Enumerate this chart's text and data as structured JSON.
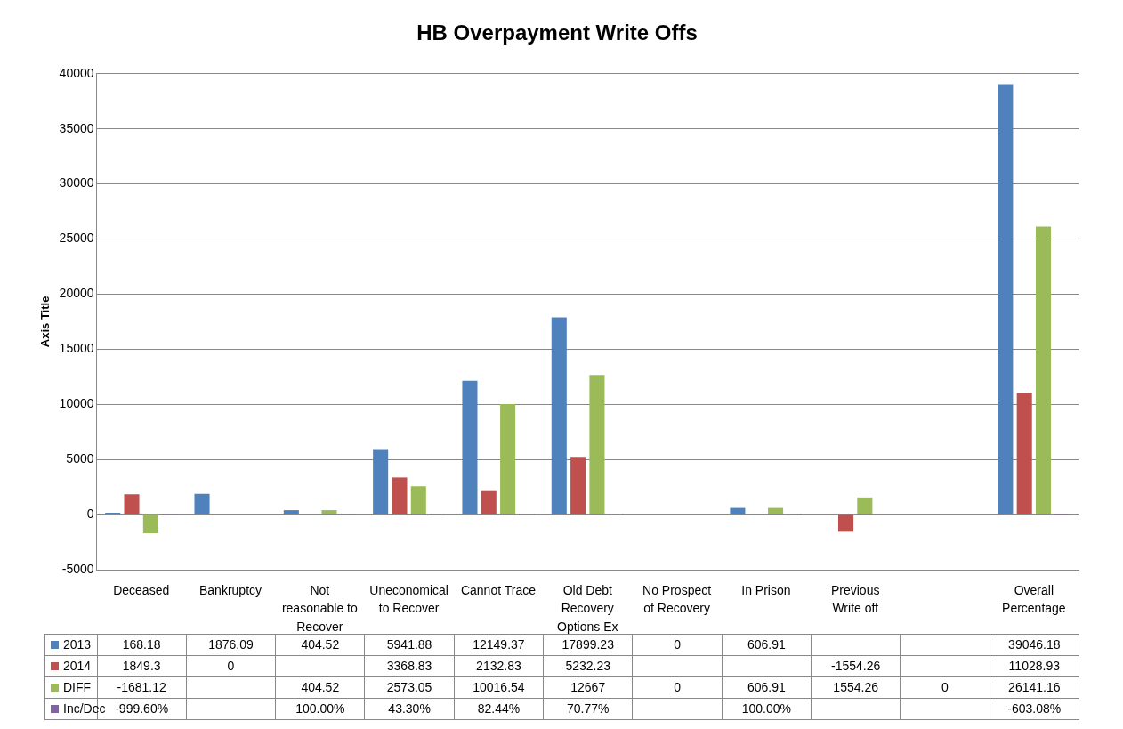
{
  "chart_data": {
    "type": "bar",
    "title": "HB Overpayment Write Offs",
    "ylabel": "Axis Title",
    "categories": [
      "Deceased",
      "Bankruptcy",
      "Not reasonable to Recover",
      "Uneconomical to Recover",
      "Cannot Trace",
      "Old Debt Recovery Options Ex",
      "No Prospect of Recovery",
      "In Prison",
      "Previous Write off",
      null,
      "Overall Percentage"
    ],
    "series": [
      {
        "name": "2013",
        "color": "#4f81bd",
        "values": [
          168.18,
          1876.09,
          404.52,
          5941.88,
          12149.37,
          17899.23,
          0,
          606.91,
          null,
          null,
          39046.18
        ],
        "value_labels": [
          "168.18",
          "1876.09",
          "404.52",
          "5941.88",
          "12149.37",
          "17899.23",
          "0",
          "606.91",
          null,
          null,
          "39046.18"
        ]
      },
      {
        "name": "2014",
        "color": "#c0504d",
        "values": [
          1849.3,
          0,
          null,
          3368.83,
          2132.83,
          5232.23,
          null,
          null,
          -1554.26,
          null,
          11028.93
        ],
        "value_labels": [
          "1849.3",
          "0",
          null,
          "3368.83",
          "2132.83",
          "5232.23",
          null,
          null,
          "-1554.26",
          null,
          "11028.93"
        ]
      },
      {
        "name": "DIFF",
        "color": "#9bbb59",
        "values": [
          -1681.12,
          null,
          404.52,
          2573.05,
          10016.54,
          12667,
          0,
          606.91,
          1554.26,
          0,
          26141.16
        ],
        "value_labels": [
          "-1681.12",
          null,
          "404.52",
          "2573.05",
          "10016.54",
          "12667",
          "0",
          "606.91",
          "1554.26",
          "0",
          "26141.16"
        ]
      },
      {
        "name": "Inc/Dec",
        "color": "#8064a2",
        "values": [
          -9.996,
          null,
          1,
          0.433,
          0.8244,
          0.7077,
          null,
          1,
          null,
          null,
          -6.0308
        ],
        "value_labels": [
          "-999.60%",
          null,
          "100.00%",
          "43.30%",
          "82.44%",
          "70.77%",
          null,
          "100.00%",
          null,
          null,
          "-603.08%"
        ]
      }
    ],
    "ylim": [
      -5000,
      40000
    ],
    "yticks": [
      -5000,
      0,
      5000,
      10000,
      15000,
      20000,
      25000,
      30000,
      35000,
      40000
    ],
    "grid": "y",
    "legend": "bottom"
  }
}
